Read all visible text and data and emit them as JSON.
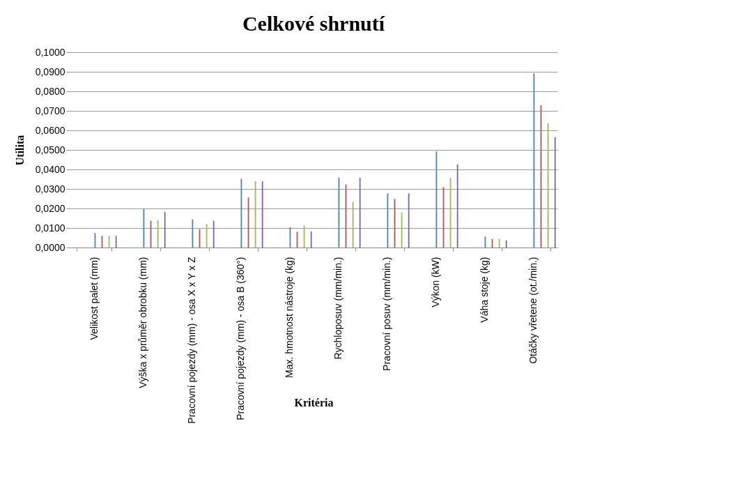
{
  "chart_data": {
    "type": "bar",
    "title": "Celkové shrnutí",
    "xlabel": "Kritéria",
    "ylabel": "Utilita",
    "categories": [
      "Velikost palet (mm)",
      "Výška x průměr obrobku (mm)",
      "Pracovní pojezdy (mm) - osa X x Y x Z",
      "Pracovní pojezdy (mm) - osa B (360°)",
      "Max. hmotnost nástroje (kg)",
      "Rychloposuv (mm/min.)",
      "Pracovní posuv (mm/min.)",
      "Výkon (kW)",
      "Váha stoje (kg)",
      "Otáčky vřetene (ot./min.)"
    ],
    "series": [
      {
        "color": "#4f81bd",
        "values": [
          0.0074,
          0.0198,
          0.0144,
          0.0352,
          0.0104,
          0.0358,
          0.0277,
          0.0492,
          0.0056,
          0.0892
        ]
      },
      {
        "color": "#c0504d",
        "values": [
          0.006,
          0.0137,
          0.0094,
          0.0256,
          0.008,
          0.0323,
          0.0249,
          0.031,
          0.0044,
          0.0729
        ]
      },
      {
        "color": "#9bbb59",
        "values": [
          0.006,
          0.014,
          0.012,
          0.034,
          0.0113,
          0.0233,
          0.018,
          0.0356,
          0.0044,
          0.0636
        ]
      },
      {
        "color": "#8064a2",
        "values": [
          0.006,
          0.0183,
          0.0137,
          0.034,
          0.0083,
          0.0358,
          0.0277,
          0.0426,
          0.0037,
          0.0565
        ]
      }
    ],
    "ylim": [
      0,
      0.1
    ],
    "yticks": [
      {
        "value": 0,
        "label": "0,0000"
      },
      {
        "value": 0.01,
        "label": "0,0100"
      },
      {
        "value": 0.02,
        "label": "0,0200"
      },
      {
        "value": 0.03,
        "label": "0,0300"
      },
      {
        "value": 0.04,
        "label": "0,0400"
      },
      {
        "value": 0.05,
        "label": "0,0500"
      },
      {
        "value": 0.06,
        "label": "0,0600"
      },
      {
        "value": 0.07,
        "label": "0,0700"
      },
      {
        "value": 0.08,
        "label": "0,0800"
      },
      {
        "value": 0.09,
        "label": "0,0900"
      },
      {
        "value": 0.1,
        "label": "0,1000"
      }
    ],
    "grid": "y",
    "legend": false
  }
}
